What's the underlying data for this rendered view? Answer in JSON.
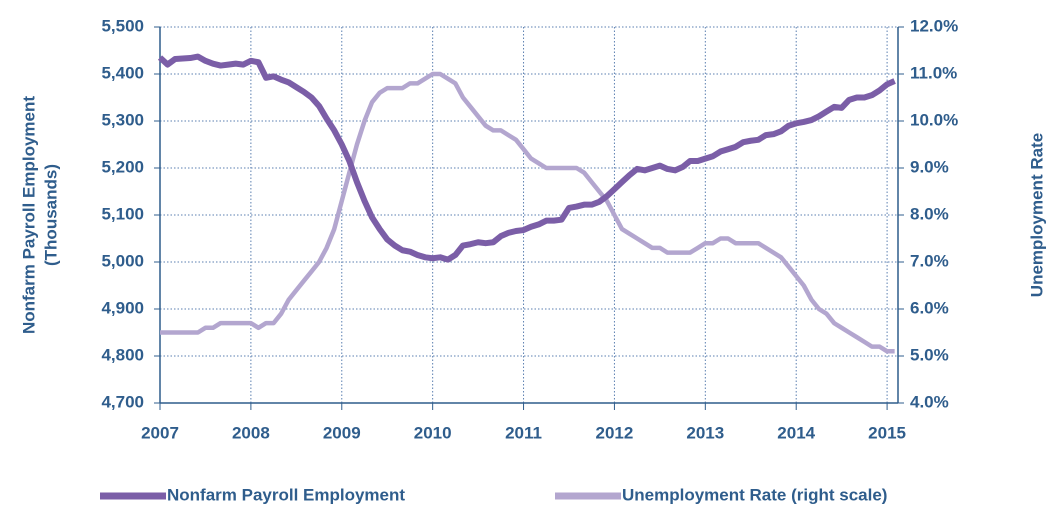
{
  "chart_data": {
    "type": "line",
    "ylabel": [
      "Nonfarm Payroll Employment",
      "(Thousands)"
    ],
    "y2label": "Unemployment Rate",
    "x": [
      2007,
      2007.083,
      2007.167,
      2007.25,
      2007.333,
      2007.417,
      2007.5,
      2007.583,
      2007.667,
      2007.75,
      2007.833,
      2007.917,
      2008,
      2008.083,
      2008.167,
      2008.25,
      2008.333,
      2008.417,
      2008.5,
      2008.583,
      2008.667,
      2008.75,
      2008.833,
      2008.917,
      2009,
      2009.083,
      2009.167,
      2009.25,
      2009.333,
      2009.417,
      2009.5,
      2009.583,
      2009.667,
      2009.75,
      2009.833,
      2009.917,
      2010,
      2010.083,
      2010.167,
      2010.25,
      2010.333,
      2010.417,
      2010.5,
      2010.583,
      2010.667,
      2010.75,
      2010.833,
      2010.917,
      2011,
      2011.083,
      2011.167,
      2011.25,
      2011.333,
      2011.417,
      2011.5,
      2011.583,
      2011.667,
      2011.75,
      2011.833,
      2011.917,
      2012,
      2012.083,
      2012.167,
      2012.25,
      2012.333,
      2012.417,
      2012.5,
      2012.583,
      2012.667,
      2012.75,
      2012.833,
      2012.917,
      2013,
      2013.083,
      2013.167,
      2013.25,
      2013.333,
      2013.417,
      2013.5,
      2013.583,
      2013.667,
      2013.75,
      2013.833,
      2013.917,
      2014,
      2014.083,
      2014.167,
      2014.25,
      2014.333,
      2014.417,
      2014.5,
      2014.583,
      2014.667,
      2014.75,
      2014.833,
      2014.917,
      2015,
      2015.083
    ],
    "series": [
      {
        "name": "Nonfarm Payroll Employment",
        "color": "#7b5ea7",
        "axis": "y",
        "values": [
          5435,
          5420,
          5432,
          5433,
          5434,
          5437,
          5428,
          5422,
          5418,
          5420,
          5422,
          5420,
          5428,
          5425,
          5392,
          5395,
          5388,
          5382,
          5372,
          5362,
          5350,
          5332,
          5305,
          5280,
          5250,
          5215,
          5170,
          5130,
          5095,
          5070,
          5048,
          5035,
          5025,
          5022,
          5015,
          5010,
          5008,
          5010,
          5005,
          5015,
          5035,
          5038,
          5042,
          5040,
          5042,
          5055,
          5062,
          5066,
          5068,
          5075,
          5080,
          5088,
          5088,
          5090,
          5115,
          5118,
          5122,
          5122,
          5128,
          5140,
          5155,
          5170,
          5185,
          5198,
          5195,
          5200,
          5205,
          5198,
          5195,
          5202,
          5215,
          5215,
          5220,
          5225,
          5235,
          5240,
          5245,
          5255,
          5258,
          5260,
          5270,
          5272,
          5278,
          5290,
          5295,
          5298,
          5302,
          5310,
          5320,
          5330,
          5328,
          5345,
          5350,
          5350,
          5355,
          5365,
          5378,
          5385
        ]
      },
      {
        "name": "Unemployment Rate (right scale)",
        "color": "#b3a6cf",
        "axis": "y2",
        "values": [
          5.5,
          5.5,
          5.5,
          5.5,
          5.5,
          5.5,
          5.6,
          5.6,
          5.7,
          5.7,
          5.7,
          5.7,
          5.7,
          5.6,
          5.7,
          5.7,
          5.9,
          6.2,
          6.4,
          6.6,
          6.8,
          7.0,
          7.3,
          7.7,
          8.3,
          8.9,
          9.5,
          10.0,
          10.4,
          10.6,
          10.7,
          10.7,
          10.7,
          10.8,
          10.8,
          10.9,
          11.0,
          11.0,
          10.9,
          10.8,
          10.5,
          10.3,
          10.1,
          9.9,
          9.8,
          9.8,
          9.7,
          9.6,
          9.4,
          9.2,
          9.1,
          9.0,
          9.0,
          9.0,
          9.0,
          9.0,
          8.9,
          8.7,
          8.5,
          8.3,
          8.0,
          7.7,
          7.6,
          7.5,
          7.4,
          7.3,
          7.3,
          7.2,
          7.2,
          7.2,
          7.2,
          7.3,
          7.4,
          7.4,
          7.5,
          7.5,
          7.4,
          7.4,
          7.4,
          7.4,
          7.3,
          7.2,
          7.1,
          6.9,
          6.7,
          6.5,
          6.2,
          6.0,
          5.9,
          5.7,
          5.6,
          5.5,
          5.4,
          5.3,
          5.2,
          5.2,
          5.1,
          5.1
        ]
      }
    ],
    "xlim": [
      2007,
      2015.12
    ],
    "xticks": [
      2007,
      2008,
      2009,
      2010,
      2011,
      2012,
      2013,
      2014,
      2015
    ],
    "ylim": [
      4700,
      5500
    ],
    "yticks": [
      {
        "value": 4700,
        "label": "4,700"
      },
      {
        "value": 4800,
        "label": "4,800"
      },
      {
        "value": 4900,
        "label": "4,900"
      },
      {
        "value": 5000,
        "label": "5,000"
      },
      {
        "value": 5100,
        "label": "5,100"
      },
      {
        "value": 5200,
        "label": "5,200"
      },
      {
        "value": 5300,
        "label": "5,300"
      },
      {
        "value": 5400,
        "label": "5,400"
      },
      {
        "value": 5500,
        "label": "5,500"
      }
    ],
    "y2lim": [
      4,
      12
    ],
    "y2ticks": [
      {
        "value": 4,
        "label": "4.0%"
      },
      {
        "value": 5,
        "label": "5.0%"
      },
      {
        "value": 6,
        "label": "6.0%"
      },
      {
        "value": 7,
        "label": "7.0%"
      },
      {
        "value": 8,
        "label": "8.0%"
      },
      {
        "value": 9,
        "label": "9.0%"
      },
      {
        "value": 10,
        "label": "10.0%"
      },
      {
        "value": 11,
        "label": "11.0%"
      },
      {
        "value": 12,
        "label": "12.0%"
      }
    ],
    "grid": true,
    "legend": "bottom"
  }
}
